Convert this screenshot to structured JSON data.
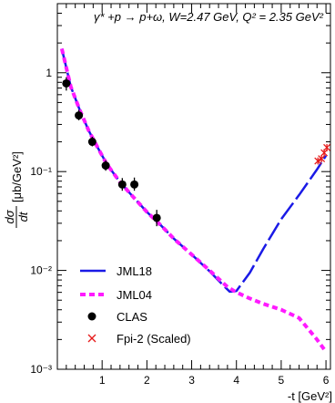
{
  "chart_data": {
    "type": "line",
    "title": "γ* +p → p+ω, W=2.47 GeV, Q² = 2.35 GeV²",
    "xlabel": "-t [GeV²]",
    "ylabel": "dσ/dt [μb/GeV²]",
    "ylabel_parts": {
      "frac_num": "dσ",
      "frac_den": "dt",
      "unit": "[μb/GeV²]"
    },
    "xlim": [
      0,
      6.1
    ],
    "ylim": [
      0.001,
      5
    ],
    "yscale": "log",
    "xticks": [
      1,
      2,
      3,
      4,
      5,
      6
    ],
    "xtick_labels": [
      "1",
      "2",
      "3",
      "4",
      "5",
      "6"
    ],
    "yticks": [
      0.001,
      0.01,
      0.1,
      1
    ],
    "ytick_labels": [
      "10⁻³",
      "10⁻²",
      "10⁻¹",
      "1"
    ],
    "grid": false,
    "legend_position": "bottom-left",
    "series": [
      {
        "name": "JML18",
        "kind": "line",
        "color": "#1a1ae6",
        "dash": "long-dash",
        "x": [
          0.1,
          0.3,
          0.5,
          0.7,
          0.9,
          1.1,
          1.4,
          1.7,
          2.0,
          2.3,
          2.6,
          3.0,
          3.4,
          3.7,
          3.85,
          4.0,
          4.3,
          4.6,
          5.0,
          5.4,
          5.8,
          6.0
        ],
        "y": [
          1.75,
          0.72,
          0.42,
          0.26,
          0.175,
          0.12,
          0.078,
          0.055,
          0.039,
          0.029,
          0.021,
          0.0145,
          0.0098,
          0.0071,
          0.0061,
          0.0062,
          0.0095,
          0.0165,
          0.033,
          0.058,
          0.105,
          0.145
        ]
      },
      {
        "name": "JML04",
        "kind": "line",
        "color": "#ff1aff",
        "dash": "short-dash",
        "x": [
          0.1,
          0.3,
          0.5,
          0.7,
          0.9,
          1.1,
          1.4,
          1.7,
          2.0,
          2.3,
          2.6,
          3.0,
          3.4,
          3.8,
          4.0,
          4.3,
          4.6,
          5.0,
          5.4,
          5.8,
          6.0
        ],
        "y": [
          1.75,
          0.72,
          0.42,
          0.26,
          0.175,
          0.12,
          0.078,
          0.055,
          0.039,
          0.029,
          0.021,
          0.0145,
          0.01,
          0.0068,
          0.006,
          0.0052,
          0.0046,
          0.004,
          0.0033,
          0.002,
          0.0015
        ]
      },
      {
        "name": "CLAS",
        "kind": "points",
        "marker": "filled-circle",
        "color": "#000000",
        "x": [
          0.2,
          0.48,
          0.78,
          1.08,
          1.45,
          1.72,
          2.22
        ],
        "y": [
          0.78,
          0.37,
          0.2,
          0.115,
          0.074,
          0.074,
          0.034
        ],
        "y_low": [
          0.66,
          0.33,
          0.18,
          0.102,
          0.064,
          0.064,
          0.028
        ],
        "y_high": [
          0.9,
          0.42,
          0.225,
          0.13,
          0.086,
          0.087,
          0.041
        ]
      },
      {
        "name": "Fpi-2 (Scaled)",
        "kind": "points",
        "marker": "cross",
        "color": "#e61a1a",
        "x": [
          5.82,
          5.9,
          5.96,
          6.02
        ],
        "y": [
          0.128,
          0.135,
          0.155,
          0.175
        ],
        "y_low": [
          0.118,
          0.124,
          0.142,
          0.16
        ],
        "y_high": [
          0.139,
          0.147,
          0.169,
          0.19
        ]
      }
    ]
  }
}
